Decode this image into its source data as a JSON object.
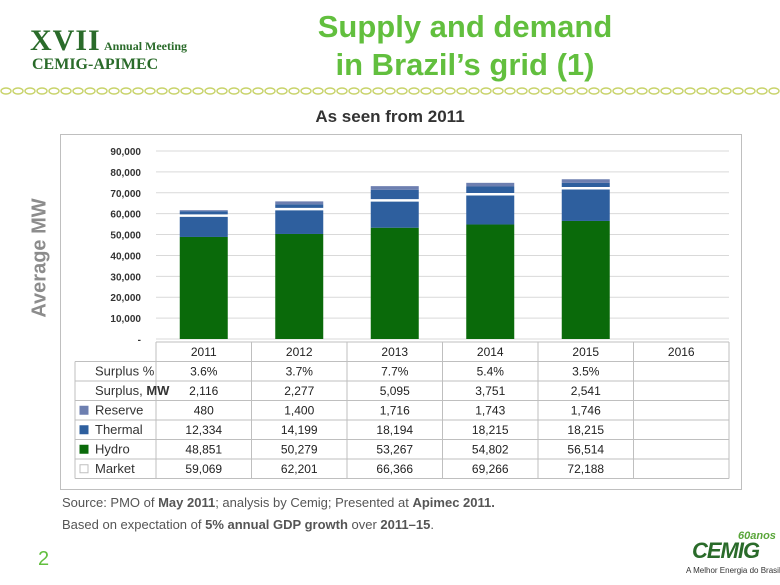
{
  "logo": {
    "roman": "XVII",
    "meeting": "Annual Meeting",
    "org": "CEMIG-APIMEC"
  },
  "title": {
    "line1": "Supply and demand",
    "line2": "in Brazil’s grid (1)"
  },
  "subtitle": "As seen from 2011",
  "colors": {
    "hydro": "#0a6a0a",
    "thermal": "#2e5f9e",
    "reserve": "#6d7fb0",
    "gridline": "#d9d9d9",
    "title": "#62bf3e"
  },
  "chart_data": {
    "type": "bar",
    "stacked": true,
    "ylabel": "Average MW",
    "ylim": [
      0,
      90000
    ],
    "yticks": [
      {
        "value": 0,
        "label": "-"
      },
      {
        "value": 10000,
        "label": "10,000"
      },
      {
        "value": 20000,
        "label": "20,000"
      },
      {
        "value": 30000,
        "label": "30,000"
      },
      {
        "value": 40000,
        "label": "40,000"
      },
      {
        "value": 50000,
        "label": "50,000"
      },
      {
        "value": 60000,
        "label": "60,000"
      },
      {
        "value": 70000,
        "label": "70,000"
      },
      {
        "value": 80000,
        "label": "80,000"
      },
      {
        "value": 90000,
        "label": "90,000"
      }
    ],
    "categories": [
      "2011",
      "2012",
      "2013",
      "2014",
      "2015",
      "2016"
    ],
    "series": [
      {
        "name": "Hydro",
        "values": [
          48851,
          50279,
          53267,
          54802,
          56514,
          null
        ]
      },
      {
        "name": "Thermal",
        "values": [
          12334,
          14199,
          18194,
          18215,
          18215,
          null
        ]
      },
      {
        "name": "Reserve",
        "values": [
          480,
          1400,
          1716,
          1743,
          1746,
          null
        ]
      }
    ],
    "market": [
      59069,
      62201,
      66366,
      69266,
      72188,
      null
    ],
    "table": [
      {
        "label": "Surplus %",
        "label_suffix": "",
        "swatch": "none",
        "cells": [
          "3.6%",
          "3.7%",
          "7.7%",
          "5.4%",
          "3.5%",
          ""
        ]
      },
      {
        "label": "Surplus, ",
        "label_suffix": "MW",
        "swatch": "none",
        "cells": [
          "2,116",
          "2,277",
          "5,095",
          "3,751",
          "2,541",
          ""
        ]
      },
      {
        "label": "Reserve",
        "label_suffix": "",
        "swatch": "#6d7fb0",
        "cells": [
          "480",
          "1,400",
          "1,716",
          "1,743",
          "1,746",
          ""
        ]
      },
      {
        "label": "Thermal",
        "label_suffix": "",
        "swatch": "#2e5f9e",
        "cells": [
          "12,334",
          "14,199",
          "18,194",
          "18,215",
          "18,215",
          ""
        ]
      },
      {
        "label": "Hydro",
        "label_suffix": "",
        "swatch": "#0a6a0a",
        "cells": [
          "48,851",
          "50,279",
          "53,267",
          "54,802",
          "56,514",
          ""
        ]
      },
      {
        "label": "Market",
        "label_suffix": "",
        "swatch": "#ffffff",
        "cells": [
          "59,069",
          "62,201",
          "66,366",
          "69,266",
          "72,188",
          ""
        ]
      }
    ]
  },
  "footer": {
    "line1": {
      "a": "Source: PMO of ",
      "b": "May 2011",
      "c": "; analysis by Cemig; Presented at ",
      "d": "Apimec 2011."
    },
    "line2": {
      "a": "Based on expectation of ",
      "b": "5% annual GDP growth",
      "c": " over ",
      "d": "2011–15",
      "e": "."
    }
  },
  "page_number": "2",
  "brand": {
    "word": "CEMIG",
    "tagline": "A Melhor Energia do Brasil.",
    "badge": "60anos"
  }
}
